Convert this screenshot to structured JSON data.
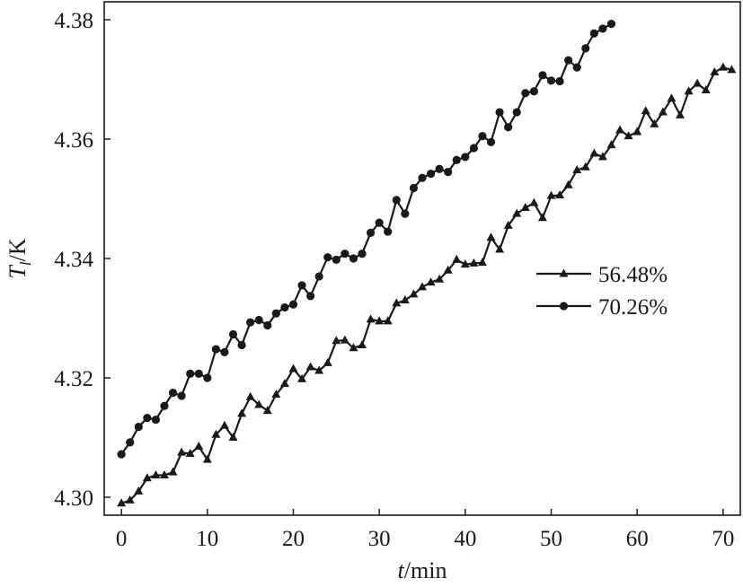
{
  "chart_data": {
    "type": "line",
    "xlabel": {
      "italic": "t",
      "rest": "/min"
    },
    "ylabel": {
      "italic": "T",
      "subscript": "l",
      "rest": "/K"
    },
    "xlim": [
      -2,
      72
    ],
    "ylim": [
      4.297,
      4.383
    ],
    "xticks": [
      0,
      10,
      20,
      30,
      40,
      50,
      60,
      70
    ],
    "xtick_labels": [
      "0",
      "10",
      "20",
      "30",
      "40",
      "50",
      "60",
      "70"
    ],
    "yticks": [
      4.3,
      4.32,
      4.34,
      4.36,
      4.38
    ],
    "ytick_labels": [
      "4.30",
      "4.32",
      "4.34",
      "4.36",
      "4.38"
    ],
    "grid": false,
    "legend_position": "right-middle",
    "series": [
      {
        "name": "56.48%",
        "marker": "triangle",
        "color": "#1a1a1a",
        "x": [
          0,
          1,
          2,
          3,
          4,
          5,
          6,
          7,
          8,
          9,
          10,
          11,
          12,
          13,
          14,
          15,
          16,
          17,
          18,
          19,
          20,
          21,
          22,
          23,
          24,
          25,
          26,
          27,
          28,
          29,
          30,
          31,
          32,
          33,
          34,
          35,
          36,
          37,
          38,
          39,
          40,
          41,
          42,
          43,
          44,
          45,
          46,
          47,
          48,
          49,
          50,
          51,
          52,
          53,
          54,
          55,
          56,
          57,
          58,
          59,
          60,
          61,
          62,
          63,
          64,
          65,
          66,
          67,
          68,
          69,
          70,
          71
        ],
        "y": [
          4.299,
          4.2995,
          4.301,
          4.3032,
          4.3037,
          4.3037,
          4.3042,
          4.3075,
          4.3073,
          4.3085,
          4.3063,
          4.3105,
          4.312,
          4.31,
          4.314,
          4.3168,
          4.3155,
          4.3145,
          4.3172,
          4.319,
          4.3215,
          4.3198,
          4.3218,
          4.3212,
          4.3225,
          4.3262,
          4.3263,
          4.325,
          4.3255,
          4.3298,
          4.3295,
          4.3295,
          4.3325,
          4.333,
          4.334,
          4.3352,
          4.336,
          4.3365,
          4.338,
          4.3398,
          4.339,
          4.3392,
          4.3393,
          4.3435,
          4.3415,
          4.3455,
          4.3475,
          4.3485,
          4.3493,
          4.3468,
          4.3505,
          4.3506,
          4.3523,
          4.3548,
          4.3553,
          4.3576,
          4.357,
          4.359,
          4.3615,
          4.3605,
          4.3612,
          4.3647,
          4.3625,
          4.3645,
          4.3668,
          4.364,
          4.368,
          4.3693,
          4.3682,
          4.3712,
          4.372,
          4.3716
        ]
      },
      {
        "name": "70.26%",
        "marker": "circle",
        "color": "#1a1a1a",
        "x": [
          0,
          1,
          2,
          3,
          4,
          5,
          6,
          7,
          8,
          9,
          10,
          11,
          12,
          13,
          14,
          15,
          16,
          17,
          18,
          19,
          20,
          21,
          22,
          23,
          24,
          25,
          26,
          27,
          28,
          29,
          30,
          31,
          32,
          33,
          34,
          35,
          36,
          37,
          38,
          39,
          40,
          41,
          42,
          43,
          44,
          45,
          46,
          47,
          48,
          49,
          50,
          51,
          52,
          53,
          54,
          55,
          56,
          57
        ],
        "y": [
          4.3072,
          4.3092,
          4.3118,
          4.3133,
          4.313,
          4.3153,
          4.3175,
          4.317,
          4.3207,
          4.3207,
          4.32,
          4.3248,
          4.3243,
          4.3273,
          4.3255,
          4.3293,
          4.3297,
          4.3288,
          4.3308,
          4.3318,
          4.3323,
          4.3355,
          4.3337,
          4.337,
          4.3402,
          4.3398,
          4.3408,
          4.34,
          4.3408,
          4.3443,
          4.346,
          4.3445,
          4.3498,
          4.3475,
          4.3518,
          4.3535,
          4.3542,
          4.355,
          4.3545,
          4.3565,
          4.357,
          4.3585,
          4.3605,
          4.3595,
          4.3645,
          4.362,
          4.3645,
          4.3677,
          4.368,
          4.3707,
          4.3698,
          4.3697,
          4.3732,
          4.372,
          4.3752,
          4.3777,
          4.3785,
          4.3793
        ]
      }
    ]
  }
}
